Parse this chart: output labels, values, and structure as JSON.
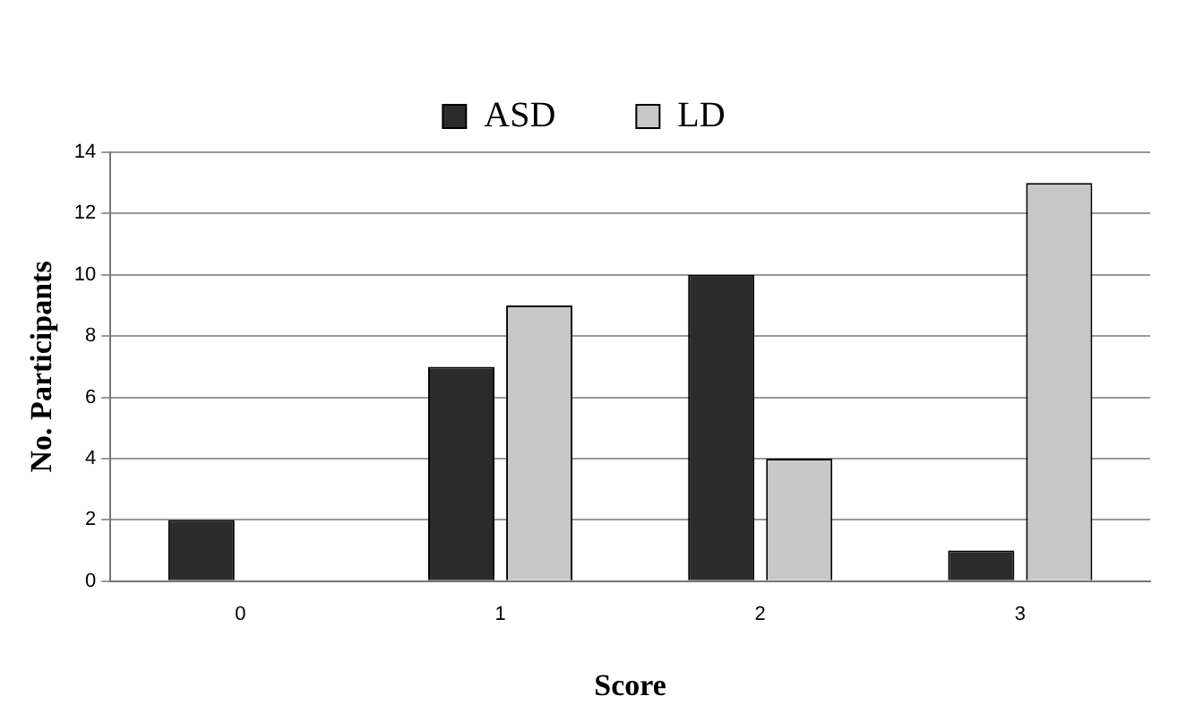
{
  "chart_data": {
    "type": "bar",
    "categories": [
      "0",
      "1",
      "2",
      "3"
    ],
    "series": [
      {
        "name": "ASD",
        "color": "#2b2b2b",
        "values": [
          2,
          7,
          10,
          1
        ]
      },
      {
        "name": "LD",
        "color": "#c8c8c8",
        "values": [
          0,
          9,
          4,
          13
        ]
      }
    ],
    "xlabel": "Score",
    "ylabel": "No. Participants",
    "ylim": [
      0,
      14
    ],
    "yticks": [
      0,
      2,
      4,
      6,
      8,
      10,
      12,
      14
    ],
    "grid": "y",
    "legend": "top"
  }
}
